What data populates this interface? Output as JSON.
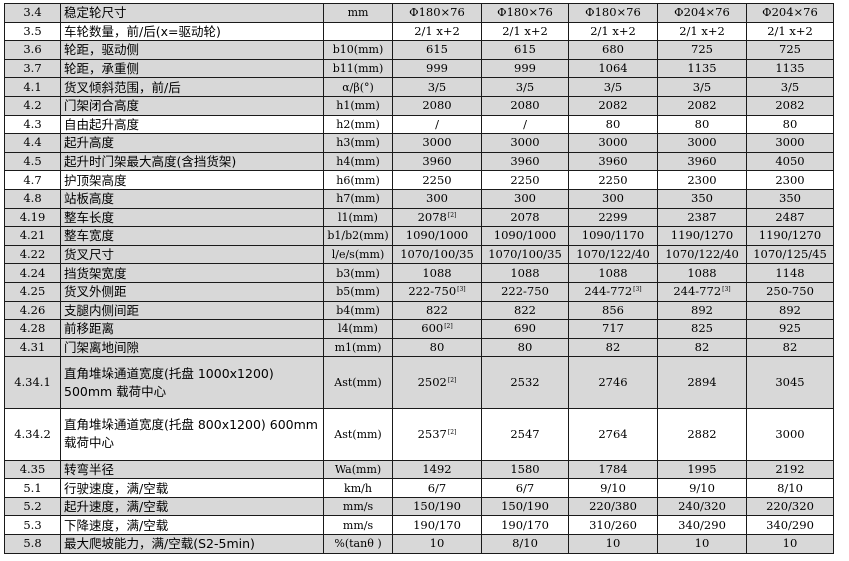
{
  "rows": [
    {
      "code": "3.4",
      "name": "稳定轮尺寸",
      "unit": "mm",
      "values": [
        "Φ180×76",
        "Φ180×76",
        "Φ180×76",
        "Φ204×76",
        "Φ204×76"
      ]
    },
    {
      "code": "3.5",
      "name": "车轮数量，前/后(x=驱动轮)",
      "unit": "",
      "values": [
        "2/1 x+2",
        "2/1 x+2",
        "2/1 x+2",
        "2/1 x+2",
        "2/1 x+2"
      ]
    },
    {
      "code": "3.6",
      "name": "轮距，驱动侧",
      "unit": "b10(mm)",
      "values": [
        "615",
        "615",
        "680",
        "725",
        "725"
      ]
    },
    {
      "code": "3.7",
      "name": "轮距，承重侧",
      "unit": "b11(mm)",
      "values": [
        "999",
        "999",
        "1064",
        "1135",
        "1135"
      ]
    },
    {
      "code": "4.1",
      "name": "货叉倾斜范围，前/后",
      "unit": "α/β(°)",
      "values": [
        "3/5",
        "3/5",
        "3/5",
        "3/5",
        "3/5"
      ]
    },
    {
      "code": "4.2",
      "name": "门架闭合高度",
      "unit": "h1(mm)",
      "values": [
        "2080",
        "2080",
        "2082",
        "2082",
        "2082"
      ]
    },
    {
      "code": "4.3",
      "name": "自由起升高度",
      "unit": "h2(mm)",
      "values": [
        "/",
        "/",
        "80",
        "80",
        "80"
      ]
    },
    {
      "code": "4.4",
      "name": "起升高度",
      "unit": "h3(mm)",
      "values": [
        "3000",
        "3000",
        "3000",
        "3000",
        "3000"
      ]
    },
    {
      "code": "4.5",
      "name": "起升时门架最大高度(含挡货架)",
      "unit": "h4(mm)",
      "values": [
        "3960",
        "3960",
        "3960",
        "3960",
        "4050"
      ]
    },
    {
      "code": "4.7",
      "name": "护顶架高度",
      "unit": "h6(mm)",
      "values": [
        "2250",
        "2250",
        "2250",
        "2300",
        "2300"
      ]
    },
    {
      "code": "4.8",
      "name": "站板高度",
      "unit": "h7(mm)",
      "values": [
        "300",
        "300",
        "300",
        "350",
        "350"
      ]
    },
    {
      "code": "4.19",
      "name": "整车长度",
      "unit": "l1(mm)",
      "values": [
        "2078",
        "2078",
        "2299",
        "2387",
        "2487"
      ],
      "notes": [
        "[2]",
        "",
        "",
        "",
        ""
      ]
    },
    {
      "code": "4.21",
      "name": "整车宽度",
      "unit": "b1/b2(mm)",
      "values": [
        "1090/1000",
        "1090/1000",
        "1090/1170",
        "1190/1270",
        "1190/1270"
      ]
    },
    {
      "code": "4.22",
      "name": "货叉尺寸",
      "unit": "l/e/s(mm)",
      "values": [
        "1070/100/35",
        "1070/100/35",
        "1070/122/40",
        "1070/122/40",
        "1070/125/45"
      ]
    },
    {
      "code": "4.24",
      "name": "挡货架宽度",
      "unit": "b3(mm)",
      "values": [
        "1088",
        "1088",
        "1088",
        "1088",
        "1148"
      ]
    },
    {
      "code": "4.25",
      "name": "货叉外侧距",
      "unit": "b5(mm)",
      "values": [
        "222-750",
        "222-750",
        "244-772",
        "244-772",
        "250-750"
      ],
      "notes": [
        "[3]",
        "",
        "[3]",
        "[3]",
        ""
      ]
    },
    {
      "code": "4.26",
      "name": "支腿内侧间距",
      "unit": "b4(mm)",
      "values": [
        "822",
        "822",
        "856",
        "892",
        "892"
      ]
    },
    {
      "code": "4.28",
      "name": "前移距离",
      "unit": "l4(mm)",
      "values": [
        "600",
        "690",
        "717",
        "825",
        "925"
      ],
      "notes": [
        "[2]",
        "",
        "",
        "",
        ""
      ]
    },
    {
      "code": "4.31",
      "name": "门架离地间隙",
      "unit": "m1(mm)",
      "values": [
        "80",
        "80",
        "82",
        "82",
        "82"
      ]
    },
    {
      "code": "4.34.1",
      "name": "直角堆垛通道宽度(托盘 1000x1200) 500mm 载荷中心",
      "unit": "Ast(mm)",
      "values": [
        "2502",
        "2532",
        "2746",
        "2894",
        "3045"
      ],
      "notes": [
        "[2]",
        "",
        "",
        "",
        ""
      ]
    },
    {
      "code": "4.34.2",
      "name": "直角堆垛通道宽度(托盘 800x1200) 600mm 载荷中心",
      "unit": "Ast(mm)",
      "values": [
        "2537",
        "2547",
        "2764",
        "2882",
        "3000"
      ],
      "notes": [
        "[2]",
        "",
        "",
        "",
        ""
      ]
    },
    {
      "code": "4.35",
      "name": "转弯半径",
      "unit": "Wa(mm)",
      "values": [
        "1492",
        "1580",
        "1784",
        "1995",
        "2192"
      ]
    },
    {
      "code": "5.1",
      "name": "行驶速度，满/空载",
      "unit": "km/h",
      "values": [
        "6/7",
        "6/7",
        "9/10",
        "9/10",
        "8/10"
      ]
    },
    {
      "code": "5.2",
      "name": "起升速度，满/空载",
      "unit": "mm/s",
      "values": [
        "150/190",
        "150/190",
        "220/380",
        "240/320",
        "220/320"
      ]
    },
    {
      "code": "5.3",
      "name": "下降速度，满/空载",
      "unit": "mm/s",
      "values": [
        "190/170",
        "190/170",
        "310/260",
        "340/290",
        "340/290"
      ]
    },
    {
      "code": "5.8",
      "name": "最大爬坡能力，满/空载(S2-5min)",
      "unit": "%(tanθ )",
      "values": [
        "10",
        "8/10",
        "10",
        "10",
        "10"
      ]
    }
  ],
  "colors": {
    "shade": "#d8d8d8",
    "border": "#1a1a1a",
    "white": "#ffffff"
  }
}
